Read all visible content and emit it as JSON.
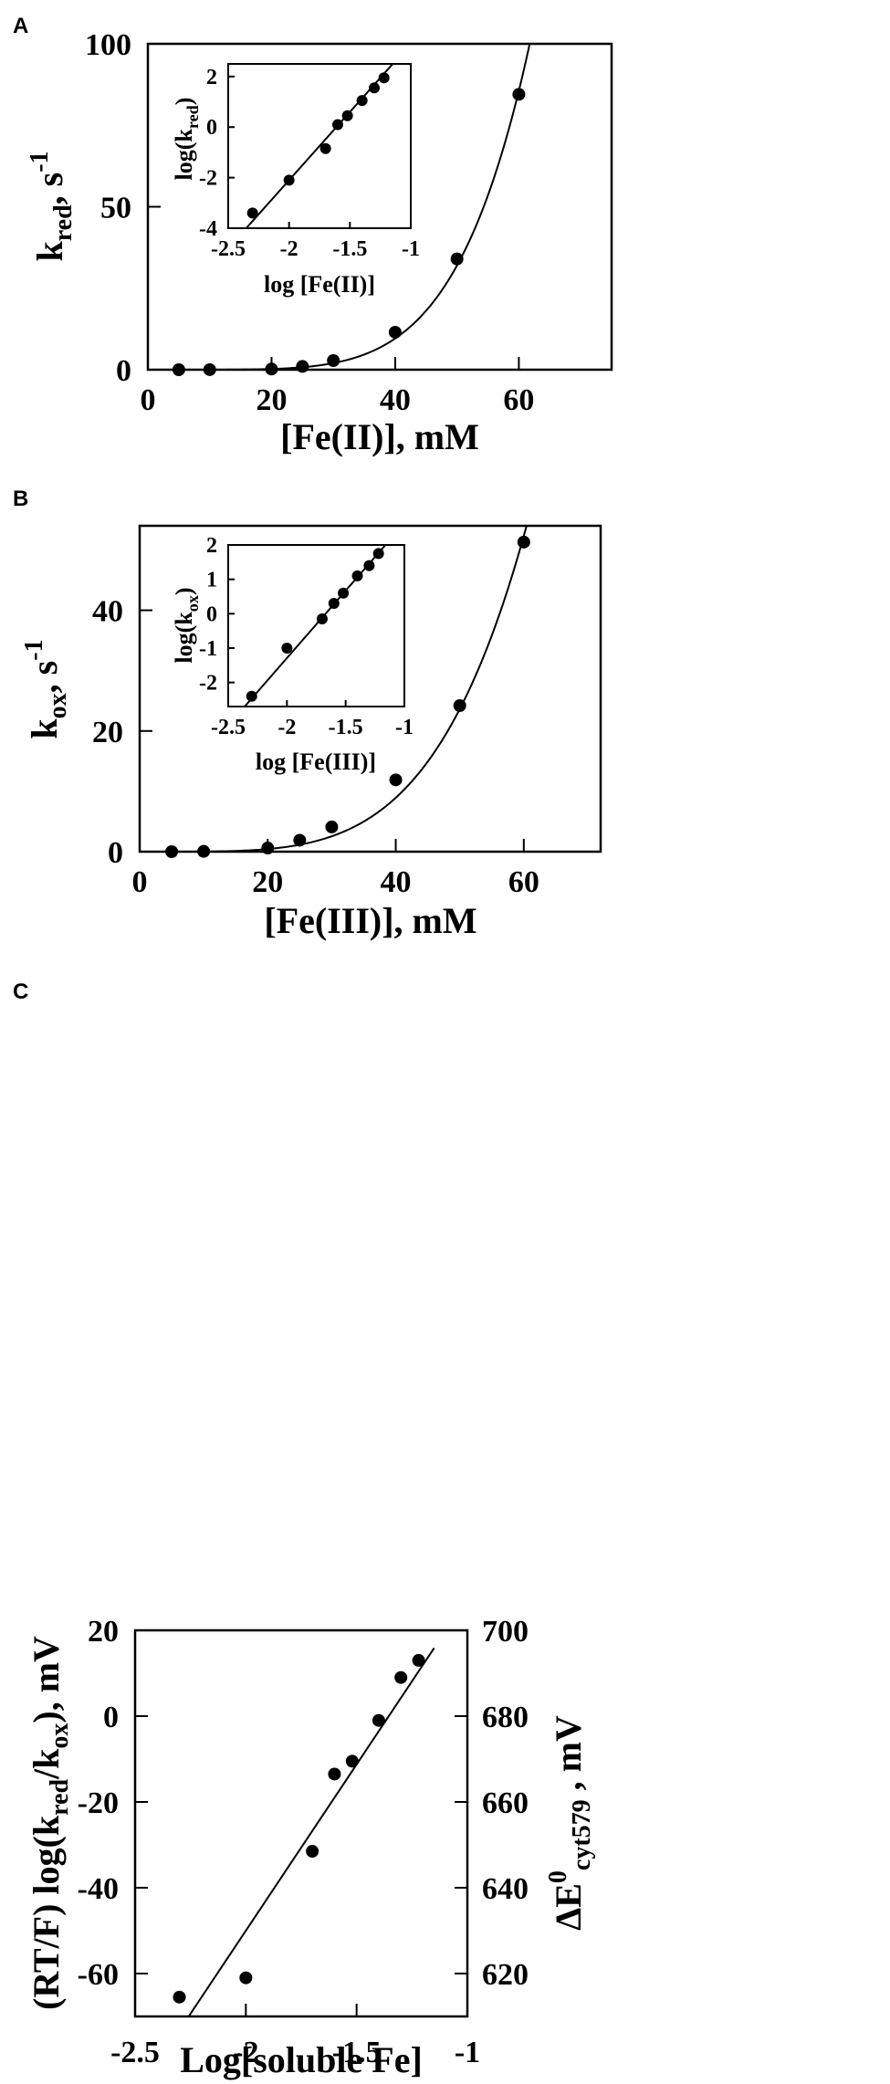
{
  "chart_data": [
    {
      "panel": "A",
      "type": "scatter",
      "xlabel": "[Fe(II)], mM",
      "ylabel": {
        "main": "k",
        "sub": "red",
        "rest": ", s",
        "sup": "-1"
      },
      "xlim": [
        0,
        75
      ],
      "ylim": [
        0,
        100
      ],
      "xticks": [
        0,
        20,
        40,
        60
      ],
      "yticks": [
        0,
        50,
        100
      ],
      "grid": false,
      "series": [
        {
          "x": [
            5,
            10,
            20,
            25,
            30,
            40,
            50,
            60
          ],
          "y": [
            0.0,
            0.01,
            0.2,
            1.0,
            2.8,
            11.5,
            34.0,
            84.5
          ]
        }
      ],
      "fit_curve": {
        "form": "power",
        "k": 2.14e-08,
        "n": 5.4,
        "x_from": 0,
        "x_to": 75
      },
      "inset": {
        "type": "scatter",
        "xlabel": "log [Fe(II)]",
        "ylabel": {
          "main": "log(k",
          "sub": "red",
          "rest": ")"
        },
        "xlim": [
          -2.5,
          -1.0
        ],
        "ylim": [
          -4,
          2.5
        ],
        "xticks": [
          -2.5,
          -2.0,
          -1.5,
          -1.0
        ],
        "yticks": [
          -4,
          -2,
          0,
          2
        ],
        "series": [
          {
            "x": [
              -2.3,
              -2.0,
              -1.7,
              -1.6,
              -1.52,
              -1.4,
              -1.3,
              -1.22
            ],
            "y": [
              -3.4,
              -2.1,
              -0.85,
              0.1,
              0.45,
              1.05,
              1.55,
              1.95
            ]
          }
        ],
        "fit_line": {
          "slope": 5.4,
          "intercept": 8.7
        }
      }
    },
    {
      "panel": "B",
      "type": "scatter",
      "xlabel": "[Fe(III)], mM",
      "ylabel": {
        "main": "k",
        "sub": "ox",
        "rest": ", s",
        "sup": "-1"
      },
      "xlim": [
        0,
        72
      ],
      "ylim": [
        0,
        54
      ],
      "xticks": [
        0,
        20,
        40,
        60
      ],
      "yticks": [
        0,
        20,
        40
      ],
      "grid": false,
      "series": [
        {
          "x": [
            5,
            10,
            20,
            25,
            30,
            40,
            50,
            60
          ],
          "y": [
            0.0,
            0.05,
            0.6,
            1.9,
            4.1,
            11.9,
            24.2,
            51.3
          ]
        }
      ],
      "fit_curve": {
        "form": "power",
        "k": 9.25e-07,
        "n": 4.36,
        "x_from": 0,
        "x_to": 60.6
      },
      "inset": {
        "type": "scatter",
        "xlabel": "log [Fe(III)]",
        "ylabel": {
          "main": "log(k",
          "sub": "ox",
          "rest": ")"
        },
        "xlim": [
          -2.5,
          -1.0
        ],
        "ylim": [
          -2.7,
          2.0
        ],
        "xticks": [
          -2.5,
          -2.0,
          -1.5,
          -1.0
        ],
        "yticks": [
          -2,
          -1,
          0,
          1,
          2
        ],
        "series": [
          {
            "x": [
              -2.3,
              -2.0,
              -1.7,
              -1.6,
              -1.52,
              -1.4,
              -1.3,
              -1.22
            ],
            "y": [
              -2.4,
              -1.0,
              -0.15,
              0.3,
              0.6,
              1.1,
              1.4,
              1.75
            ]
          }
        ],
        "fit_line": {
          "slope": 3.92,
          "intercept": 6.55
        }
      }
    },
    {
      "panel": "C",
      "type": "scatter",
      "xlabel": "Log[soluble Fe]",
      "ylabel_left": {
        "pre": "(RT/F) log(k",
        "sub1": "red",
        "mid": "/k",
        "sub2": "ox",
        "post": "), mV"
      },
      "ylabel_right": {
        "pre": "ΔE",
        "sup": "0",
        "sub": "cyt579",
        "post": " , mV"
      },
      "xlim": [
        -2.5,
        -1.0
      ],
      "ylim": [
        -70,
        20
      ],
      "ylim_right": [
        610,
        700
      ],
      "xticks": [
        -2.5,
        -2.0,
        -1.5,
        -1.0
      ],
      "yticks": [
        -60,
        -40,
        -20,
        0,
        20
      ],
      "yticks_right": [
        620,
        640,
        660,
        680,
        700
      ],
      "grid": false,
      "series": [
        {
          "x": [
            -2.3,
            -2.0,
            -1.7,
            -1.6,
            -1.52,
            -1.4,
            -1.3,
            -1.22
          ],
          "y": [
            -65.5,
            -61.0,
            -31.5,
            -13.5,
            -10.5,
            -1.0,
            9.0,
            13.0
          ]
        }
      ],
      "fit_line": {
        "slope": 77.5,
        "intercept": 105.0,
        "x_from": -2.26,
        "x_to": -1.15
      }
    }
  ]
}
